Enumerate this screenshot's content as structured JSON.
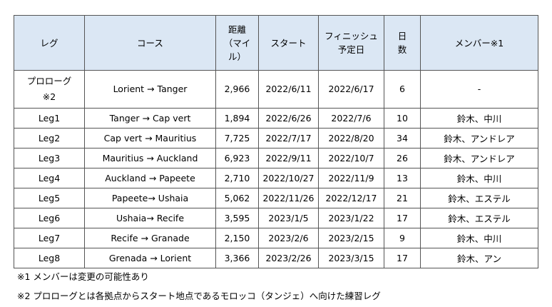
{
  "headers": {
    "leg": "レグ",
    "course": "コース",
    "distance_l1": "距離",
    "distance_l2": "（マイ",
    "distance_l3": "ル）",
    "start": "スタート",
    "finish_l1": "フィニッシュ",
    "finish_l2": "予定日",
    "days_l1": "日",
    "days_l2": "数",
    "members": "メンバー※1"
  },
  "rows": [
    {
      "leg": "プロローグ",
      "leg_note": "※2",
      "course": "Lorient → Tanger",
      "distance": "2,966",
      "start": "2022/6/11",
      "finish": "2022/6/17",
      "days": "6",
      "members": "-"
    },
    {
      "leg": "Leg1",
      "course": "Tanger → Cap vert",
      "distance": "1,894",
      "start": "2022/6/26",
      "finish": "2022/7/6",
      "days": "10",
      "members": "鈴木、中川"
    },
    {
      "leg": "Leg2",
      "course": "Cap vert → Mauritius",
      "distance": "7,725",
      "start": "2022/7/17",
      "finish": "2022/8/20",
      "days": "34",
      "members": "鈴木、アンドレア"
    },
    {
      "leg": "Leg3",
      "course": "Mauritius → Auckland",
      "distance": "6,923",
      "start": "2022/9/11",
      "finish": "2022/10/7",
      "days": "26",
      "members": "鈴木、アンドレア"
    },
    {
      "leg": "Leg4",
      "course": "Auckland → Papeete",
      "distance": "2,710",
      "start": "2022/10/27",
      "finish": "2022/11/9",
      "days": "13",
      "members": "鈴木、中川"
    },
    {
      "leg": "Leg5",
      "course": "Papeete→ Ushaia",
      "distance": "5,062",
      "start": "2022/11/26",
      "finish": "2022/12/17",
      "days": "21",
      "members": "鈴木、エステル"
    },
    {
      "leg": "Leg6",
      "course": "Ushaia→ Recife",
      "distance": "3,595",
      "start": "2023/1/5",
      "finish": "2023/1/22",
      "days": "17",
      "members": "鈴木、エステル"
    },
    {
      "leg": "Leg7",
      "course": "Recife → Granade",
      "distance": "2,150",
      "start": "2023/2/6",
      "finish": "2023/2/15",
      "days": "9",
      "members": "鈴木、中川"
    },
    {
      "leg": "Leg8",
      "course": "Grenada → Lorient",
      "distance": "3,366",
      "start": "2023/2/26",
      "finish": "2023/3/15",
      "days": "17",
      "members": "鈴木、アン"
    }
  ],
  "notes": {
    "note1": "※1 メンバーは変更の可能性あり",
    "note2": "※2 プロローグとは各拠点からスタート地点であるモロッコ（タンジェ）へ向けた練習レグ"
  },
  "colors": {
    "header_bg": "#dbe7f4",
    "border": "#555555"
  }
}
